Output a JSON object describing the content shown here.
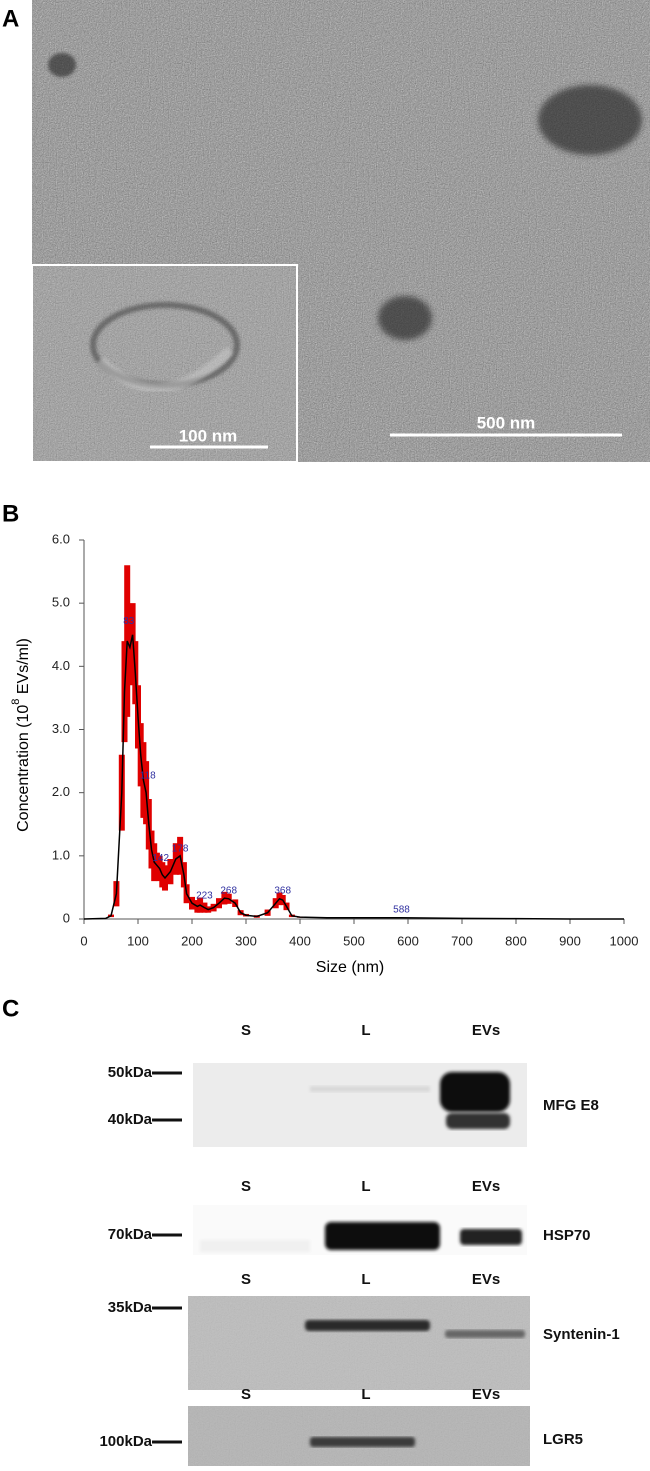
{
  "panel_a": {
    "label": "A",
    "inset_scale": "100 nm",
    "main_scale": "500 nm"
  },
  "chart_data": {
    "type": "line",
    "panel_label": "B",
    "xlabel": "Size (nm)",
    "ylabel": "Concentration (10",
    "ylabel_exponent": "8",
    "ylabel_unit": " EVs/ml)",
    "xlim": [
      0,
      1000
    ],
    "ylim": [
      0,
      6
    ],
    "xticks": [
      0,
      100,
      200,
      300,
      400,
      500,
      600,
      700,
      800,
      900,
      1000
    ],
    "yticks": [
      0,
      {
        "value": 1,
        "label": "1.0"
      },
      {
        "value": 2,
        "label": "2.0"
      },
      {
        "value": 3,
        "label": "3.0"
      },
      {
        "value": 4,
        "label": "4.0"
      },
      {
        "value": 5,
        "label": "5.0"
      },
      {
        "value": 6,
        "label": "6.0"
      }
    ],
    "x": [
      0,
      40,
      50,
      60,
      70,
      75,
      80,
      85,
      90,
      95,
      100,
      105,
      110,
      115,
      120,
      125,
      130,
      135,
      140,
      145,
      150,
      160,
      170,
      178,
      185,
      190,
      200,
      210,
      215,
      223,
      230,
      240,
      250,
      260,
      268,
      280,
      290,
      300,
      320,
      340,
      355,
      362,
      368,
      375,
      385,
      400,
      450,
      500,
      588,
      700,
      800,
      900,
      1000
    ],
    "series": [
      {
        "color": "#000000",
        "error_color": "#e00000",
        "values": [
          0,
          0.01,
          0.05,
          0.4,
          2.0,
          3.6,
          4.4,
          4.3,
          4.5,
          3.9,
          3.2,
          2.6,
          2.2,
          2.0,
          1.5,
          1.1,
          0.9,
          0.85,
          0.8,
          0.7,
          0.65,
          0.75,
          0.95,
          1.0,
          0.7,
          0.4,
          0.25,
          0.2,
          0.22,
          0.18,
          0.15,
          0.18,
          0.25,
          0.33,
          0.32,
          0.25,
          0.1,
          0.06,
          0.04,
          0.1,
          0.25,
          0.32,
          0.3,
          0.2,
          0.05,
          0.03,
          0.02,
          0.02,
          0.02,
          0.01,
          0.005,
          0,
          0
        ],
        "error": [
          0,
          0,
          0.02,
          0.2,
          0.6,
          0.8,
          1.2,
          0.6,
          0.5,
          0.5,
          0.5,
          0.5,
          0.6,
          0.5,
          0.4,
          0.3,
          0.3,
          0.2,
          0.2,
          0.2,
          0.2,
          0.2,
          0.25,
          0.3,
          0.2,
          0.15,
          0.1,
          0.1,
          0.12,
          0.08,
          0.05,
          0.06,
          0.08,
          0.1,
          0.08,
          0.06,
          0.04,
          0.02,
          0.02,
          0.05,
          0.08,
          0.1,
          0.08,
          0.06,
          0.02,
          0.01,
          0,
          0,
          0,
          0,
          0,
          0,
          0
        ]
      }
    ],
    "peaks": [
      83,
      118,
      142,
      178,
      223,
      268,
      368,
      588
    ],
    "peak_label_y": [
      4.65,
      2.2,
      0.9,
      1.05,
      0.3,
      0.38,
      0.38,
      0.08
    ],
    "peak_color": "#3030a0"
  },
  "panel_c": {
    "label": "C",
    "blots": [
      {
        "lanes": [
          "S",
          "L",
          "EVs"
        ],
        "markers": [
          "50kDa",
          "40kDa"
        ],
        "protein": "MFG E8"
      },
      {
        "lanes": [
          "S",
          "L",
          "EVs"
        ],
        "markers": [
          "70kDa"
        ],
        "protein": "HSP70"
      },
      {
        "lanes": [
          "S",
          "L",
          "EVs"
        ],
        "markers": [
          "35kDa"
        ],
        "protein": "Syntenin-1"
      },
      {
        "lanes": [
          "S",
          "L",
          "EVs"
        ],
        "markers": [
          "100kDa"
        ],
        "protein": "LGR5"
      }
    ]
  }
}
